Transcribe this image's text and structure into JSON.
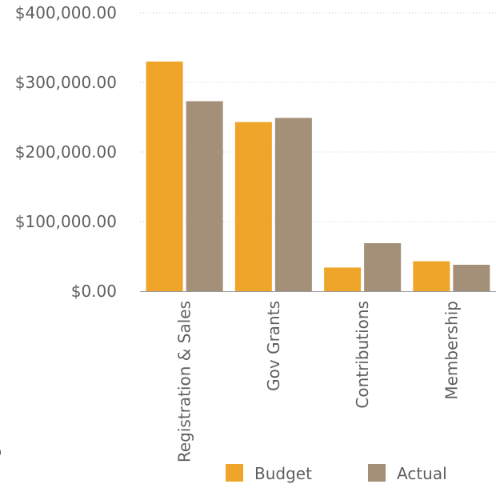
{
  "chart_data": {
    "type": "bar",
    "categories": [
      "Registration & Sales",
      "Gov Grants",
      "Contributions",
      "Membership"
    ],
    "series": [
      {
        "name": "Budget",
        "values": [
          330000,
          243000,
          34000,
          43000
        ],
        "color": "#eea52a"
      },
      {
        "name": "Actual",
        "values": [
          273000,
          249000,
          69000,
          38000
        ],
        "color": "#a49079"
      }
    ],
    "yticks": [
      {
        "value": 0,
        "label": "$0.00"
      },
      {
        "value": 100000,
        "label": "$100,000.00"
      },
      {
        "value": 200000,
        "label": "$200,000.00"
      },
      {
        "value": 300000,
        "label": "$300,000.00"
      },
      {
        "value": 400000,
        "label": "$400,000.00"
      }
    ],
    "ylim": [
      0,
      400000
    ],
    "grid": true,
    "legend_position": "bottom",
    "title": "",
    "xlabel": "",
    "ylabel": ""
  },
  "cutoff_text": {
    "line1": "s",
    "line2": "ip"
  }
}
